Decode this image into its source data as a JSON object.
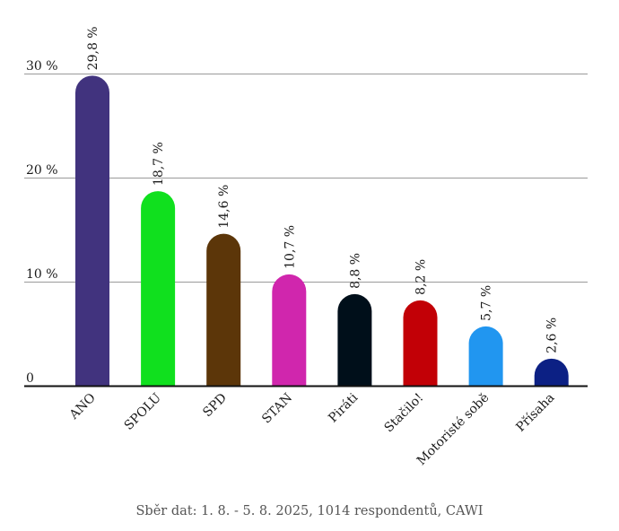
{
  "chart_data": {
    "type": "bar",
    "categories": [
      "ANO",
      "SPOLU",
      "SPD",
      "STAN",
      "Piráti",
      "Stačilo!",
      "Motoristé sobě",
      "Přísaha"
    ],
    "values": [
      29.8,
      18.7,
      14.6,
      10.7,
      8.8,
      8.2,
      5.7,
      2.6
    ],
    "value_labels": [
      "29,8 %",
      "18,7 %",
      "14,6 %",
      "10,7 %",
      "8,8 %",
      "8,2 %",
      "5,7 %",
      "2,6 %"
    ],
    "colors": [
      "#41337e",
      "#10e01e",
      "#5c3609",
      "#d026ad",
      "#000f1a",
      "#c20006",
      "#2196f0",
      "#0c2084"
    ],
    "ylim": [
      0,
      30
    ],
    "yticks": [
      0,
      10,
      20,
      30
    ],
    "ytick_labels": [
      "0",
      "10 %",
      "20 %",
      "30 %"
    ],
    "grid": true,
    "legend": "none"
  },
  "caption": "Sběr dat: 1. 8. - 5. 8. 2025, 1014 respondentů, CAWI"
}
